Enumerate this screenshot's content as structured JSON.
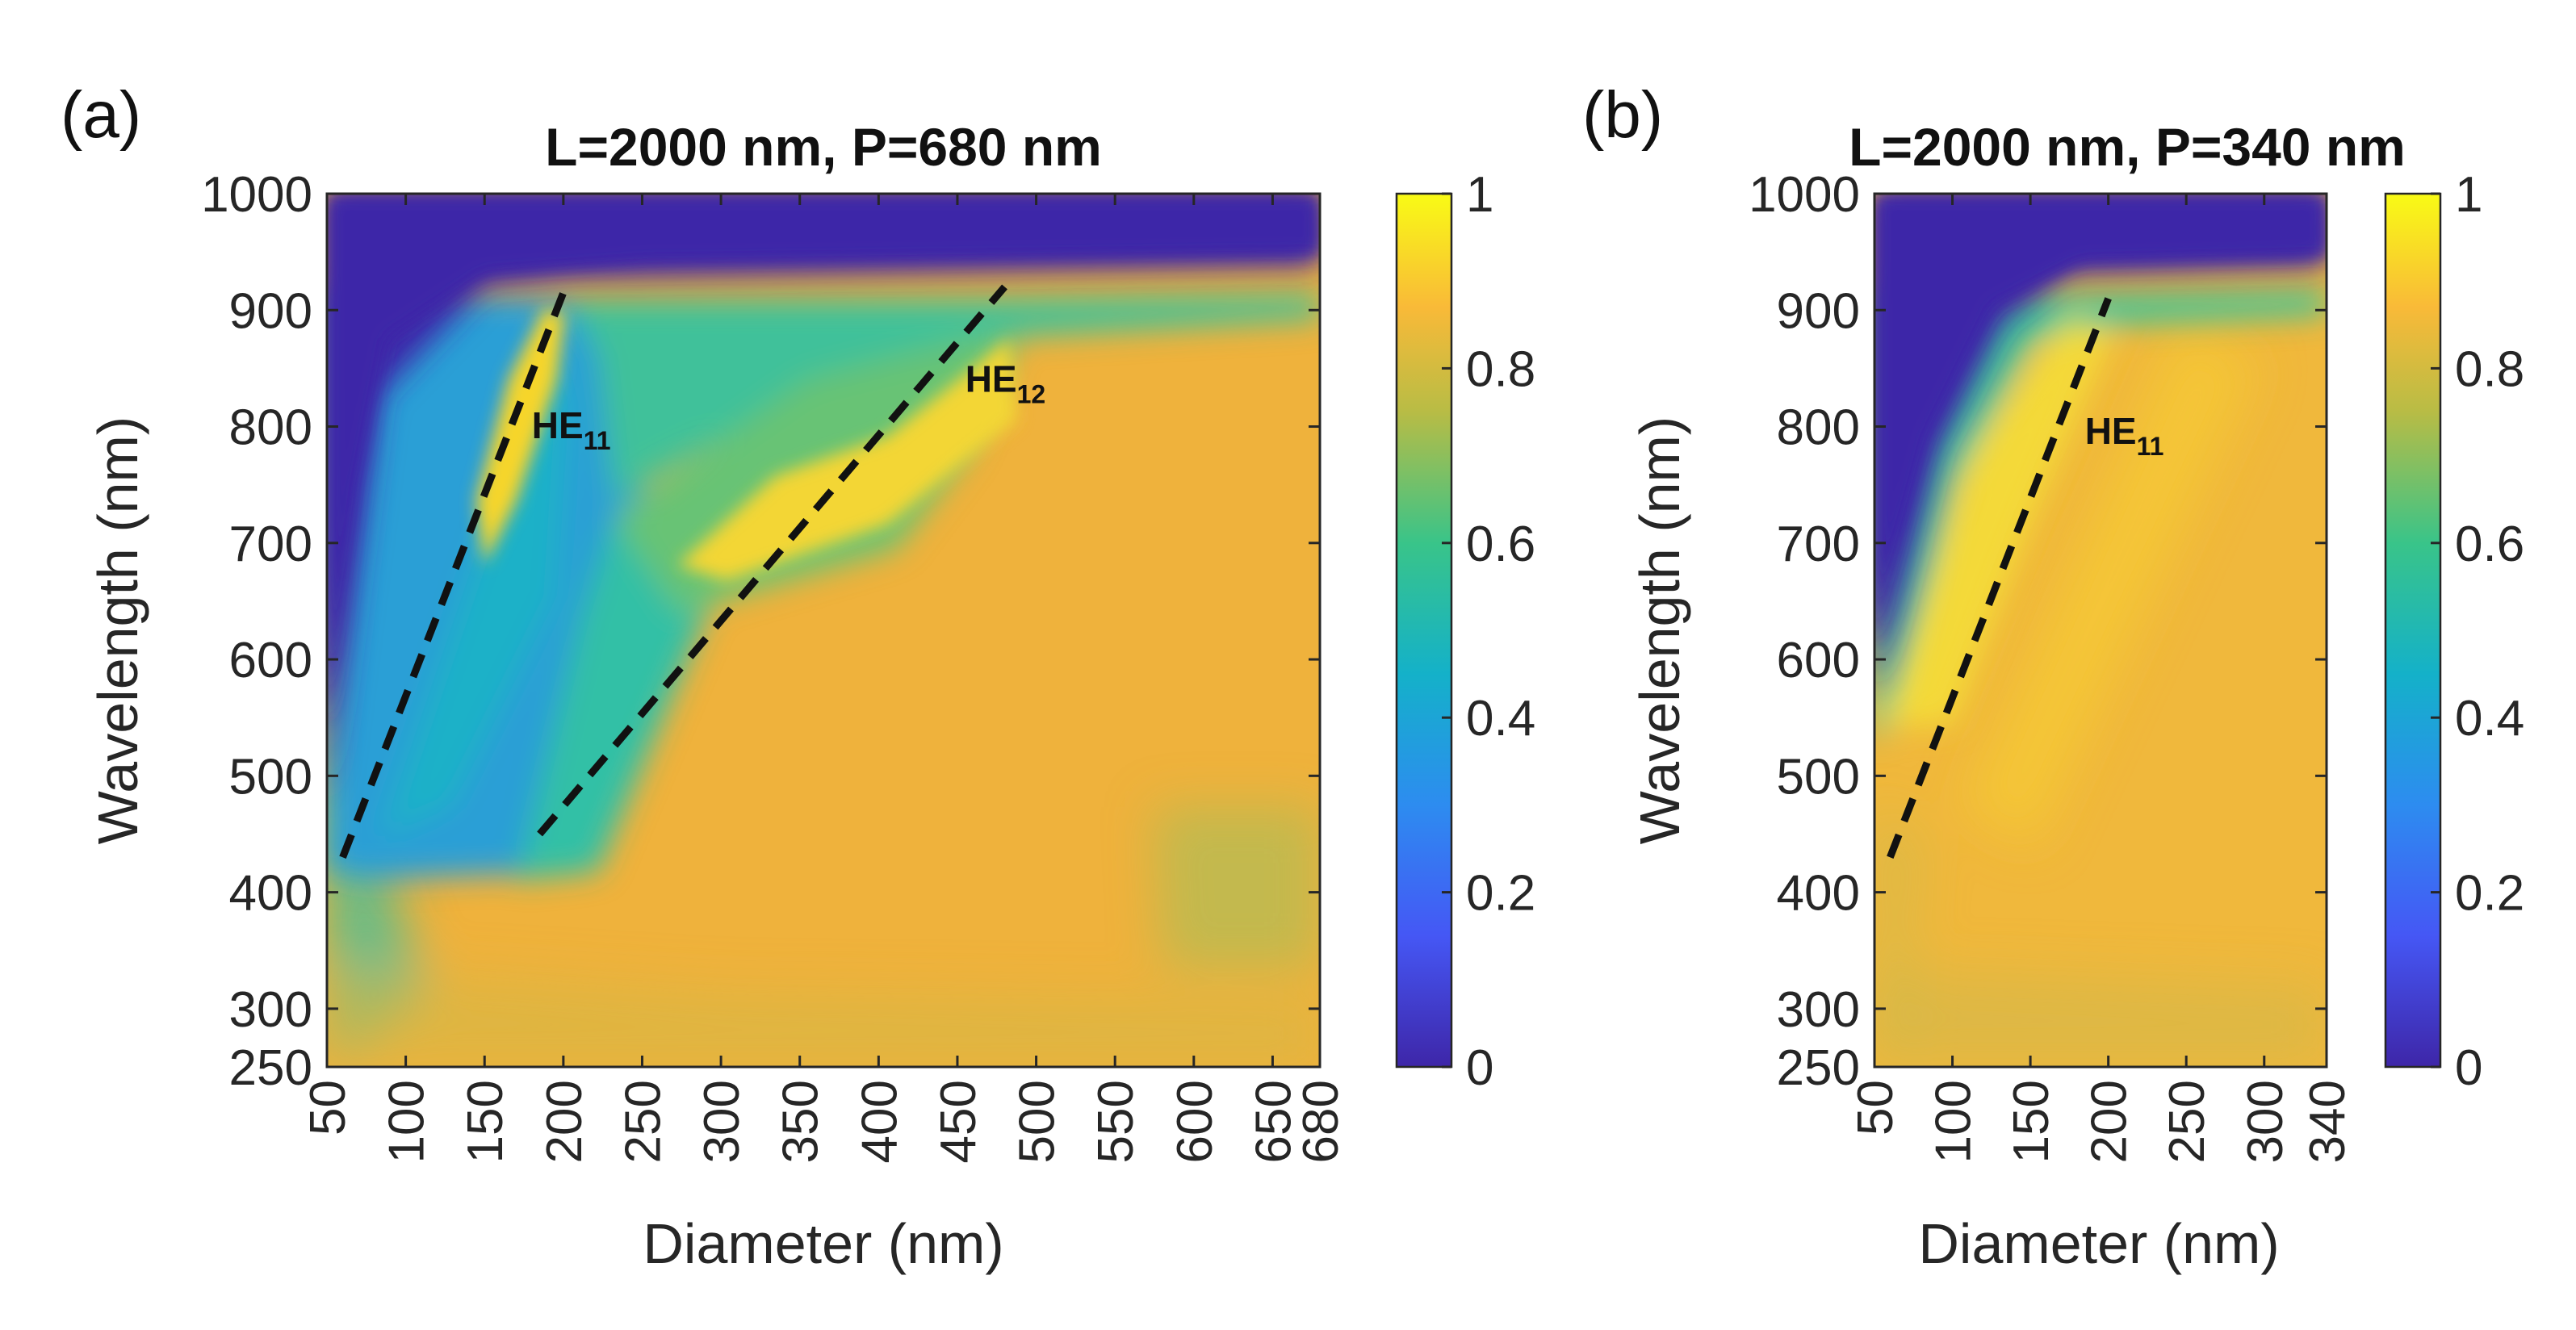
{
  "chart_data": [
    {
      "type": "heatmap",
      "panel_label": "(a)",
      "title": "L=2000 nm, P=680 nm",
      "xlabel": "Diameter (nm)",
      "ylabel": "Wavelength (nm)",
      "xlim": [
        50,
        680
      ],
      "ylim": [
        250,
        1000
      ],
      "xticks": [
        50,
        100,
        150,
        200,
        250,
        300,
        350,
        400,
        450,
        500,
        550,
        600,
        650,
        680
      ],
      "yticks": [
        250,
        300,
        400,
        500,
        600,
        700,
        800,
        900,
        1000
      ],
      "colorbar": {
        "min": 0,
        "max": 1,
        "ticks": [
          "0",
          "0.2",
          "0.4",
          "0.6",
          "0.8",
          "1"
        ]
      },
      "modes": [
        {
          "name": "HE",
          "sub": "11",
          "line": [
            [
              60,
              430
            ],
            [
              200,
              915
            ]
          ],
          "label_at": [
            180,
            790
          ]
        },
        {
          "name": "HE",
          "sub": "12",
          "line": [
            [
              185,
              450
            ],
            [
              480,
              920
            ]
          ],
          "label_at": [
            455,
            830
          ]
        }
      ]
    },
    {
      "type": "heatmap",
      "panel_label": "(b)",
      "title": "L=2000 nm, P=340 nm",
      "xlabel": "Diameter (nm)",
      "ylabel": "Wavelength (nm)",
      "xlim": [
        50,
        340
      ],
      "ylim": [
        250,
        1000
      ],
      "xticks": [
        50,
        100,
        150,
        200,
        250,
        300,
        340
      ],
      "yticks": [
        250,
        300,
        400,
        500,
        600,
        700,
        800,
        900,
        1000
      ],
      "colorbar": {
        "min": 0,
        "max": 1,
        "ticks": [
          "0",
          "0.2",
          "0.4",
          "0.6",
          "0.8",
          "1"
        ]
      },
      "modes": [
        {
          "name": "HE",
          "sub": "11",
          "line": [
            [
              60,
              430
            ],
            [
              200,
              910
            ]
          ],
          "label_at": [
            185,
            785
          ]
        }
      ]
    }
  ]
}
